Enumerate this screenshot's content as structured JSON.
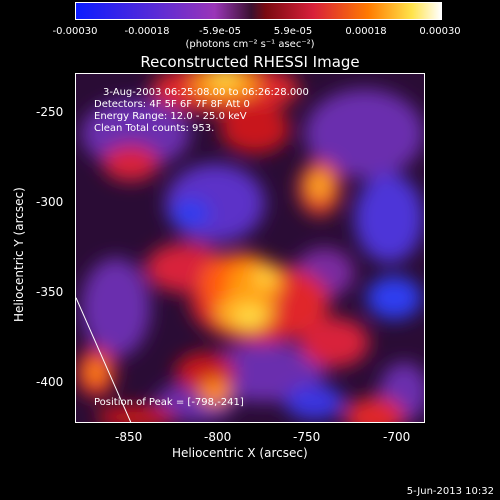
{
  "colorbar": {
    "ticks": [
      "-0.00030",
      "-0.00018",
      "-5.9e-05",
      "5.9e-05",
      "0.00018",
      "0.00030"
    ],
    "units": "(photons cm⁻² s⁻¹ asec⁻²)",
    "colors": [
      "#0b1cff",
      "#5a2bd6",
      "#9a36b8",
      "#d8203a",
      "#ff7a00",
      "#ffe34a",
      "#ffffff"
    ]
  },
  "title": "Reconstructed RHESSI Image",
  "annotations": {
    "time": "3-Aug-2003 06:25:08.00 to 06:26:28.000",
    "detectors": "Detectors: 4F 5F 6F 7F 8F  Att 0",
    "energy": "Energy Range: 12.0 - 25.0 keV",
    "method": "Clean    Total counts: 953.",
    "peak": "Position of Peak = [-798,-241]"
  },
  "axes": {
    "x_title": "Heliocentric X (arcsec)",
    "y_title": "Heliocentric Y (arcsec)",
    "x_ticks": [
      "-850",
      "-800",
      "-750",
      "-700"
    ],
    "y_ticks": [
      "-250",
      "-300",
      "-350",
      "-400"
    ]
  },
  "timestamp": "5-Jun-2013 10:32"
}
